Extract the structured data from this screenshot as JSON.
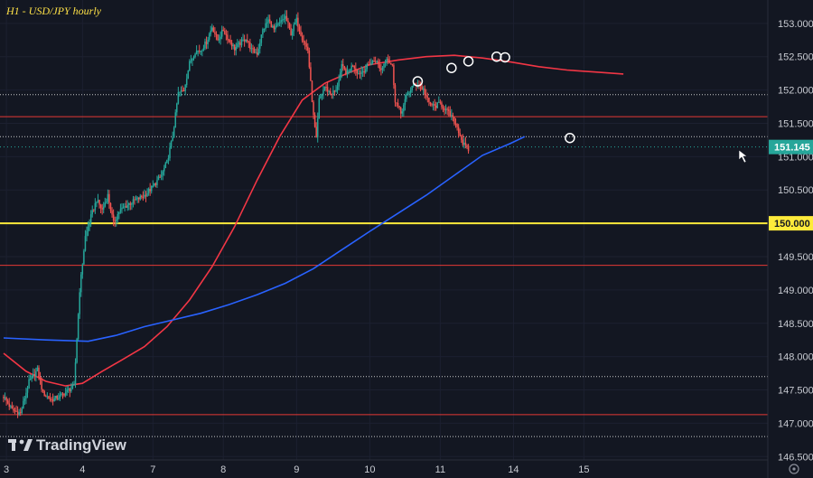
{
  "chart_data": {
    "type": "candlestick",
    "title": "H1 - USD/JPY hourly",
    "price_axis": {
      "range": [
        146.45,
        153.35
      ],
      "ticks": [
        "153.000",
        "152.500",
        "152.000",
        "151.500",
        "151.000",
        "150.500",
        "150.000",
        "149.500",
        "149.000",
        "148.500",
        "148.000",
        "147.500",
        "147.000",
        "146.500"
      ]
    },
    "time_axis": {
      "hours_visible": 270,
      "labels": [
        {
          "label": "3",
          "hour": 1
        },
        {
          "label": "4",
          "hour": 28
        },
        {
          "label": "7",
          "hour": 53
        },
        {
          "label": "8",
          "hour": 78
        },
        {
          "label": "9",
          "hour": 104
        },
        {
          "label": "10",
          "hour": 130
        },
        {
          "label": "11",
          "hour": 155
        },
        {
          "label": "14",
          "hour": 181
        },
        {
          "label": "15",
          "hour": 206
        }
      ]
    },
    "current_price": {
      "label": "151.145",
      "value": 151.145,
      "color": "#26a69a"
    },
    "level_150": {
      "label": "150.000",
      "value": 150.0,
      "color": "#ffeb3b"
    },
    "horizontal_lines": [
      {
        "value": 151.6,
        "color": "#e53935",
        "style": "solid"
      },
      {
        "value": 149.37,
        "color": "#e53935",
        "style": "solid"
      },
      {
        "value": 147.13,
        "color": "#e53935",
        "style": "solid"
      },
      {
        "value": 151.93,
        "color": "#c8c8c8",
        "style": "dotted"
      },
      {
        "value": 151.3,
        "color": "#c8c8c8",
        "style": "dotted"
      },
      {
        "value": 147.7,
        "color": "#c8c8c8",
        "style": "dotted"
      },
      {
        "value": 146.8,
        "color": "#c8c8c8",
        "style": "dotted"
      }
    ],
    "moving_averages": [
      {
        "color": "#f23645",
        "points": [
          [
            0,
            148.05
          ],
          [
            8,
            147.78
          ],
          [
            15,
            147.63
          ],
          [
            22,
            147.56
          ],
          [
            28,
            147.6
          ],
          [
            35,
            147.78
          ],
          [
            42,
            147.95
          ],
          [
            50,
            148.15
          ],
          [
            58,
            148.45
          ],
          [
            66,
            148.85
          ],
          [
            74,
            149.35
          ],
          [
            82,
            149.95
          ],
          [
            90,
            150.65
          ],
          [
            98,
            151.3
          ],
          [
            106,
            151.85
          ],
          [
            114,
            152.1
          ],
          [
            122,
            152.25
          ],
          [
            130,
            152.38
          ],
          [
            140,
            152.45
          ],
          [
            150,
            152.5
          ],
          [
            160,
            152.52
          ],
          [
            170,
            152.48
          ],
          [
            180,
            152.42
          ],
          [
            190,
            152.35
          ],
          [
            200,
            152.3
          ],
          [
            210,
            152.27
          ],
          [
            220,
            152.24
          ]
        ]
      },
      {
        "color": "#2962ff",
        "points": [
          [
            0,
            148.28
          ],
          [
            15,
            148.25
          ],
          [
            30,
            148.23
          ],
          [
            40,
            148.32
          ],
          [
            50,
            148.45
          ],
          [
            60,
            148.55
          ],
          [
            70,
            148.65
          ],
          [
            80,
            148.78
          ],
          [
            90,
            148.93
          ],
          [
            100,
            149.1
          ],
          [
            110,
            149.32
          ],
          [
            120,
            149.6
          ],
          [
            130,
            149.88
          ],
          [
            140,
            150.15
          ],
          [
            150,
            150.42
          ],
          [
            160,
            150.72
          ],
          [
            170,
            151.02
          ],
          [
            180,
            151.2
          ],
          [
            185,
            151.3
          ]
        ]
      }
    ],
    "candles_path": [
      [
        0,
        147.4
      ],
      [
        3,
        147.2
      ],
      [
        6,
        147.15
      ],
      [
        9,
        147.62
      ],
      [
        12,
        147.8
      ],
      [
        14,
        147.45
      ],
      [
        17,
        147.35
      ],
      [
        20,
        147.4
      ],
      [
        23,
        147.5
      ],
      [
        25,
        147.55
      ],
      [
        27,
        149.0
      ],
      [
        29,
        149.8
      ],
      [
        31,
        150.1
      ],
      [
        33,
        150.35
      ],
      [
        35,
        150.2
      ],
      [
        37,
        150.42
      ],
      [
        39,
        150.0
      ],
      [
        41,
        150.18
      ],
      [
        44,
        150.28
      ],
      [
        47,
        150.35
      ],
      [
        50,
        150.42
      ],
      [
        53,
        150.55
      ],
      [
        56,
        150.72
      ],
      [
        58,
        150.92
      ],
      [
        60,
        151.3
      ],
      [
        62,
        151.95
      ],
      [
        64,
        152.0
      ],
      [
        66,
        152.4
      ],
      [
        68,
        152.58
      ],
      [
        70,
        152.6
      ],
      [
        72,
        152.72
      ],
      [
        74,
        152.95
      ],
      [
        76,
        152.75
      ],
      [
        78,
        152.9
      ],
      [
        80,
        152.75
      ],
      [
        82,
        152.62
      ],
      [
        84,
        152.7
      ],
      [
        86,
        152.78
      ],
      [
        88,
        152.6
      ],
      [
        90,
        152.55
      ],
      [
        92,
        152.9
      ],
      [
        94,
        153.05
      ],
      [
        96,
        152.9
      ],
      [
        98,
        153.0
      ],
      [
        100,
        153.1
      ],
      [
        102,
        152.85
      ],
      [
        104,
        153.05
      ],
      [
        106,
        152.78
      ],
      [
        108,
        152.6
      ],
      [
        109,
        152.1
      ],
      [
        110,
        151.6
      ],
      [
        111,
        151.25
      ],
      [
        112,
        151.85
      ],
      [
        114,
        152.05
      ],
      [
        116,
        151.95
      ],
      [
        118,
        151.98
      ],
      [
        120,
        152.35
      ],
      [
        122,
        152.25
      ],
      [
        124,
        152.38
      ],
      [
        126,
        152.25
      ],
      [
        128,
        152.3
      ],
      [
        130,
        152.4
      ],
      [
        132,
        152.45
      ],
      [
        134,
        152.3
      ],
      [
        136,
        152.5
      ],
      [
        138,
        152.35
      ],
      [
        139,
        151.85
      ],
      [
        141,
        151.65
      ],
      [
        143,
        151.9
      ],
      [
        145,
        152.05
      ],
      [
        147,
        152.1
      ],
      [
        149,
        152.0
      ],
      [
        151,
        151.8
      ],
      [
        153,
        151.75
      ],
      [
        155,
        151.8
      ],
      [
        157,
        151.7
      ],
      [
        159,
        151.6
      ],
      [
        161,
        151.45
      ],
      [
        163,
        151.2
      ],
      [
        165,
        151.1
      ]
    ],
    "markers": [
      [
        147,
        152.13
      ],
      [
        159,
        152.33
      ],
      [
        165,
        152.43
      ],
      [
        175,
        152.5
      ],
      [
        178,
        152.49
      ],
      [
        201,
        151.28
      ]
    ],
    "watermark": "TradingView"
  }
}
